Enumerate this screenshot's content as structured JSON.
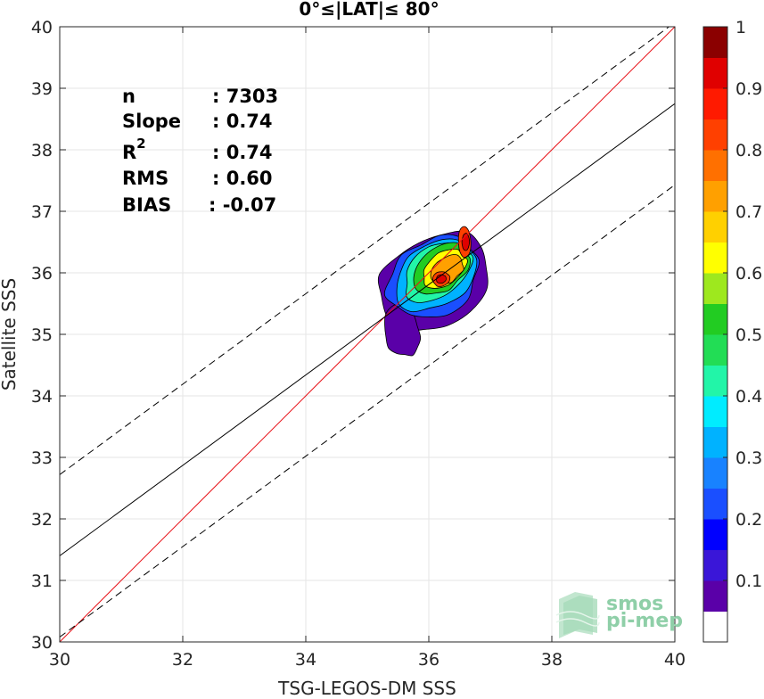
{
  "chart_data": {
    "type": "contour",
    "title": "0°≤|LAT|≤ 80°",
    "xlabel": "TSG-LEGOS-DM SSS",
    "ylabel": "Satellite SSS",
    "xlim": [
      30,
      40
    ],
    "ylim": [
      30,
      40
    ],
    "xticks": [
      "30",
      "32",
      "34",
      "36",
      "38",
      "40"
    ],
    "yticks": [
      "30",
      "31",
      "32",
      "33",
      "34",
      "35",
      "36",
      "37",
      "38",
      "39",
      "40"
    ],
    "grid": true,
    "stats": [
      {
        "label": "n",
        "value": ": 7303"
      },
      {
        "label": "Slope",
        "value": ": 0.74"
      },
      {
        "label": "R",
        "sup": "2",
        "value": ": 0.74"
      },
      {
        "label": "RMS",
        "value": ": 0.60"
      },
      {
        "label": "BIAS",
        "value": ": -0.07"
      }
    ],
    "lines": {
      "identity": {
        "x": [
          30,
          40
        ],
        "y": [
          30,
          40
        ],
        "color": "#e8141a"
      },
      "regression": {
        "x": [
          30,
          40
        ],
        "y": [
          31.4,
          38.75
        ],
        "color": "#000000"
      },
      "upper_bound": {
        "x": [
          30,
          40
        ],
        "y": [
          32.72,
          40.07
        ],
        "color": "#000000",
        "dash": true
      },
      "lower_bound": {
        "x": [
          30,
          40
        ],
        "y": [
          30.08,
          37.43
        ],
        "color": "#000000",
        "dash": true
      }
    },
    "density_peaks": [
      {
        "x": 36.2,
        "y": 35.9,
        "level": 0.9
      },
      {
        "x": 36.6,
        "y": 36.5,
        "level": 0.85
      }
    ],
    "colorbar": {
      "ticks": [
        "0.1",
        "0.2",
        "0.3",
        "0.4",
        "0.5",
        "0.6",
        "0.7",
        "0.8",
        "0.9",
        "1"
      ],
      "colors": [
        "#ffffff",
        "#5a00a8",
        "#3a16d8",
        "#0000ff",
        "#1a4fff",
        "#1882ff",
        "#00b2ff",
        "#00ecff",
        "#22f5a8",
        "#22dd55",
        "#22cc22",
        "#9ee81e",
        "#ffff00",
        "#ffd000",
        "#ffa000",
        "#ff7000",
        "#ff4000",
        "#ff1a00",
        "#e00000",
        "#8b0000"
      ]
    },
    "contour_fills": [
      "#5a00a8",
      "#1a4fff",
      "#00b2ff",
      "#22f5a8",
      "#22cc22",
      "#ffff00",
      "#ffa000",
      "#ff4000",
      "#e00000"
    ]
  },
  "logo": {
    "line1": "smos",
    "line2": "pi-mep"
  }
}
